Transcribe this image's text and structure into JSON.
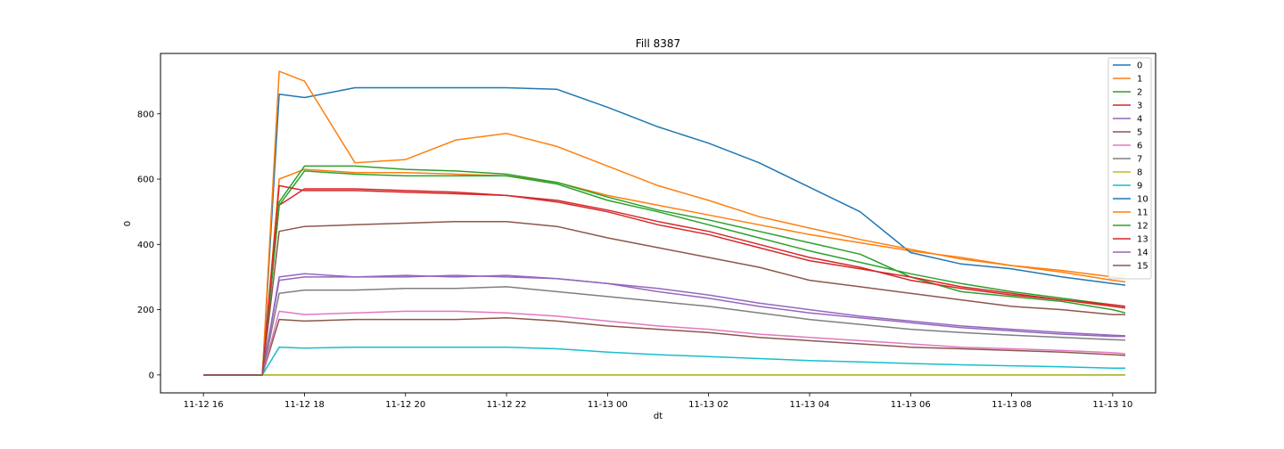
{
  "chart_data": {
    "type": "line",
    "title": "Fill 8387",
    "xlabel": "dt",
    "ylabel": "0",
    "x_range": [
      "2024-11-12 15:09",
      "2024-11-13 10:51"
    ],
    "ylim": [
      -55,
      985
    ],
    "x_ticks": [
      {
        "value": "11-12 16",
        "label": "11-12 16"
      },
      {
        "value": "11-12 18",
        "label": "11-12 18"
      },
      {
        "value": "11-12 20",
        "label": "11-12 20"
      },
      {
        "value": "11-12 22",
        "label": "11-12 22"
      },
      {
        "value": "11-13 00",
        "label": "11-13 00"
      },
      {
        "value": "11-13 02",
        "label": "11-13 02"
      },
      {
        "value": "11-13 04",
        "label": "11-13 04"
      },
      {
        "value": "11-13 06",
        "label": "11-13 06"
      },
      {
        "value": "11-13 08",
        "label": "11-13 08"
      },
      {
        "value": "11-13 10",
        "label": "11-13 10"
      }
    ],
    "y_ticks": [
      0,
      200,
      400,
      600,
      800
    ],
    "grid": false,
    "legend_position": "upper right",
    "x": [
      "11-12 16:00",
      "11-12 17:10",
      "11-12 17:30",
      "11-12 18:00",
      "11-12 19:00",
      "11-12 20:00",
      "11-12 21:00",
      "11-12 22:00",
      "11-12 23:00",
      "11-13 00:00",
      "11-13 01:00",
      "11-13 02:00",
      "11-13 03:00",
      "11-13 04:00",
      "11-13 05:00",
      "11-13 06:00",
      "11-13 07:00",
      "11-13 08:00",
      "11-13 09:00",
      "11-13 10:00",
      "11-13 10:15"
    ],
    "series": [
      {
        "name": "0",
        "color": "#1f77b4",
        "values": [
          0,
          0,
          0,
          0,
          0,
          0,
          0,
          0,
          0,
          0,
          0,
          0,
          0,
          0,
          0,
          0,
          0,
          0,
          0,
          0,
          0
        ]
      },
      {
        "name": "1",
        "color": "#ff7f0e",
        "values": [
          0,
          0,
          600,
          630,
          620,
          620,
          615,
          610,
          590,
          550,
          520,
          490,
          460,
          430,
          405,
          380,
          360,
          335,
          315,
          290,
          285
        ]
      },
      {
        "name": "2",
        "color": "#2ca02c",
        "values": [
          0,
          0,
          530,
          640,
          640,
          630,
          625,
          615,
          590,
          545,
          505,
          475,
          440,
          405,
          370,
          300,
          255,
          240,
          225,
          200,
          190
        ]
      },
      {
        "name": "3",
        "color": "#d62728",
        "values": [
          0,
          0,
          520,
          570,
          570,
          565,
          560,
          550,
          535,
          505,
          470,
          440,
          400,
          360,
          330,
          290,
          265,
          245,
          230,
          210,
          205
        ]
      },
      {
        "name": "4",
        "color": "#9467bd",
        "values": [
          0,
          0,
          290,
          300,
          300,
          305,
          300,
          305,
          295,
          280,
          255,
          235,
          210,
          190,
          175,
          160,
          145,
          135,
          125,
          118,
          118
        ]
      },
      {
        "name": "5",
        "color": "#8c564b",
        "values": [
          0,
          0,
          170,
          165,
          170,
          170,
          170,
          175,
          165,
          150,
          140,
          130,
          115,
          105,
          95,
          85,
          80,
          75,
          70,
          62,
          60
        ]
      },
      {
        "name": "6",
        "color": "#e377c2",
        "values": [
          0,
          0,
          195,
          185,
          190,
          195,
          195,
          190,
          180,
          165,
          150,
          140,
          125,
          115,
          105,
          95,
          85,
          80,
          75,
          68,
          65
        ]
      },
      {
        "name": "7",
        "color": "#7f7f7f",
        "values": [
          0,
          0,
          250,
          260,
          260,
          265,
          265,
          270,
          255,
          240,
          225,
          210,
          190,
          170,
          155,
          140,
          130,
          122,
          115,
          108,
          107
        ]
      },
      {
        "name": "8",
        "color": "#bcbd22",
        "values": [
          0,
          0,
          0,
          0,
          0,
          0,
          0,
          0,
          0,
          0,
          0,
          0,
          0,
          0,
          0,
          0,
          0,
          0,
          0,
          0,
          0
        ]
      },
      {
        "name": "9",
        "color": "#17becf",
        "values": [
          0,
          0,
          85,
          82,
          85,
          85,
          85,
          85,
          80,
          70,
          62,
          56,
          50,
          44,
          40,
          35,
          31,
          28,
          25,
          21,
          21
        ]
      },
      {
        "name": "10",
        "color": "#1f77b4",
        "values": [
          0,
          0,
          860,
          850,
          880,
          880,
          880,
          880,
          875,
          820,
          760,
          710,
          650,
          575,
          500,
          375,
          340,
          325,
          300,
          280,
          275
        ]
      },
      {
        "name": "11",
        "color": "#ff7f0e",
        "values": [
          0,
          0,
          930,
          900,
          650,
          660,
          720,
          740,
          700,
          640,
          580,
          535,
          485,
          450,
          415,
          385,
          355,
          335,
          320,
          300,
          295
        ]
      },
      {
        "name": "12",
        "color": "#2ca02c",
        "values": [
          0,
          0,
          520,
          625,
          615,
          610,
          610,
          610,
          585,
          535,
          500,
          460,
          420,
          380,
          345,
          310,
          280,
          255,
          235,
          215,
          210
        ]
      },
      {
        "name": "13",
        "color": "#d62728",
        "values": [
          0,
          0,
          580,
          565,
          565,
          560,
          555,
          550,
          530,
          500,
          460,
          430,
          390,
          350,
          325,
          300,
          270,
          250,
          230,
          215,
          210
        ]
      },
      {
        "name": "14",
        "color": "#9467bd",
        "values": [
          0,
          0,
          300,
          310,
          300,
          300,
          305,
          300,
          295,
          280,
          265,
          245,
          220,
          200,
          180,
          165,
          150,
          140,
          130,
          122,
          120
        ]
      },
      {
        "name": "15",
        "color": "#8c564b",
        "values": [
          0,
          0,
          440,
          455,
          460,
          465,
          470,
          470,
          455,
          420,
          390,
          360,
          330,
          290,
          270,
          250,
          230,
          210,
          200,
          185,
          185
        ]
      }
    ]
  }
}
